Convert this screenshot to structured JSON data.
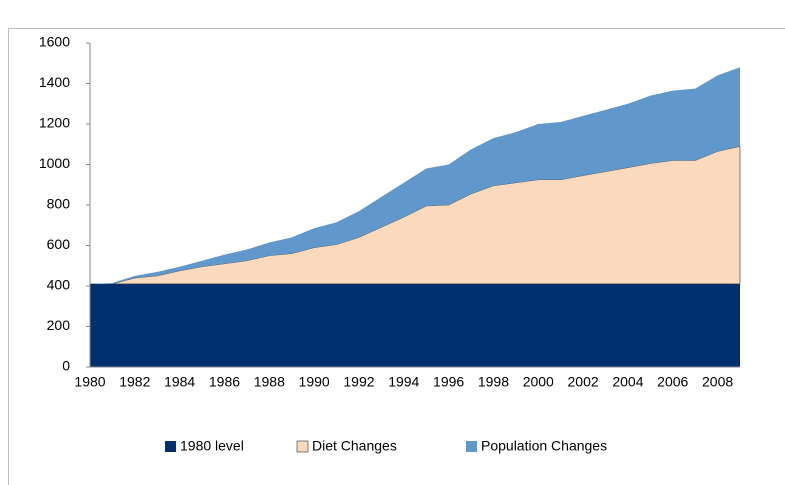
{
  "chart_data": {
    "type": "stacked_area",
    "categories": [
      "1980",
      null,
      "1982",
      null,
      "1984",
      null,
      "1986",
      null,
      "1988",
      null,
      "1990",
      null,
      "1992",
      null,
      "1994",
      null,
      "1996",
      null,
      "1998",
      null,
      "2000",
      null,
      "2002",
      null,
      "2004",
      null,
      "2006",
      null,
      "2008",
      null
    ],
    "series": [
      {
        "name": "1980 level",
        "color": "#003070",
        "values": [
          410,
          410,
          410,
          410,
          410,
          410,
          410,
          410,
          410,
          410,
          410,
          410,
          410,
          410,
          410,
          410,
          410,
          410,
          410,
          410,
          410,
          410,
          410,
          410,
          410,
          410,
          410,
          410,
          410,
          410
        ]
      },
      {
        "name": "Diet Changes",
        "color": "#fad9bc",
        "values": [
          0,
          0,
          30,
          40,
          65,
          85,
          100,
          115,
          140,
          150,
          180,
          195,
          230,
          280,
          330,
          385,
          390,
          445,
          485,
          500,
          515,
          515,
          535,
          555,
          575,
          595,
          610,
          610,
          655,
          680
        ]
      },
      {
        "name": "Population Changes",
        "color": "#6098cc",
        "values": [
          0,
          5,
          10,
          20,
          20,
          30,
          45,
          55,
          65,
          80,
          95,
          110,
          130,
          150,
          170,
          185,
          200,
          220,
          235,
          250,
          275,
          285,
          295,
          305,
          315,
          335,
          345,
          355,
          375,
          390
        ]
      }
    ],
    "ylim": [
      0,
      1600
    ],
    "yticks": [
      0,
      200,
      400,
      600,
      800,
      1000,
      1200,
      1400,
      1600
    ],
    "legend": "bottom"
  }
}
